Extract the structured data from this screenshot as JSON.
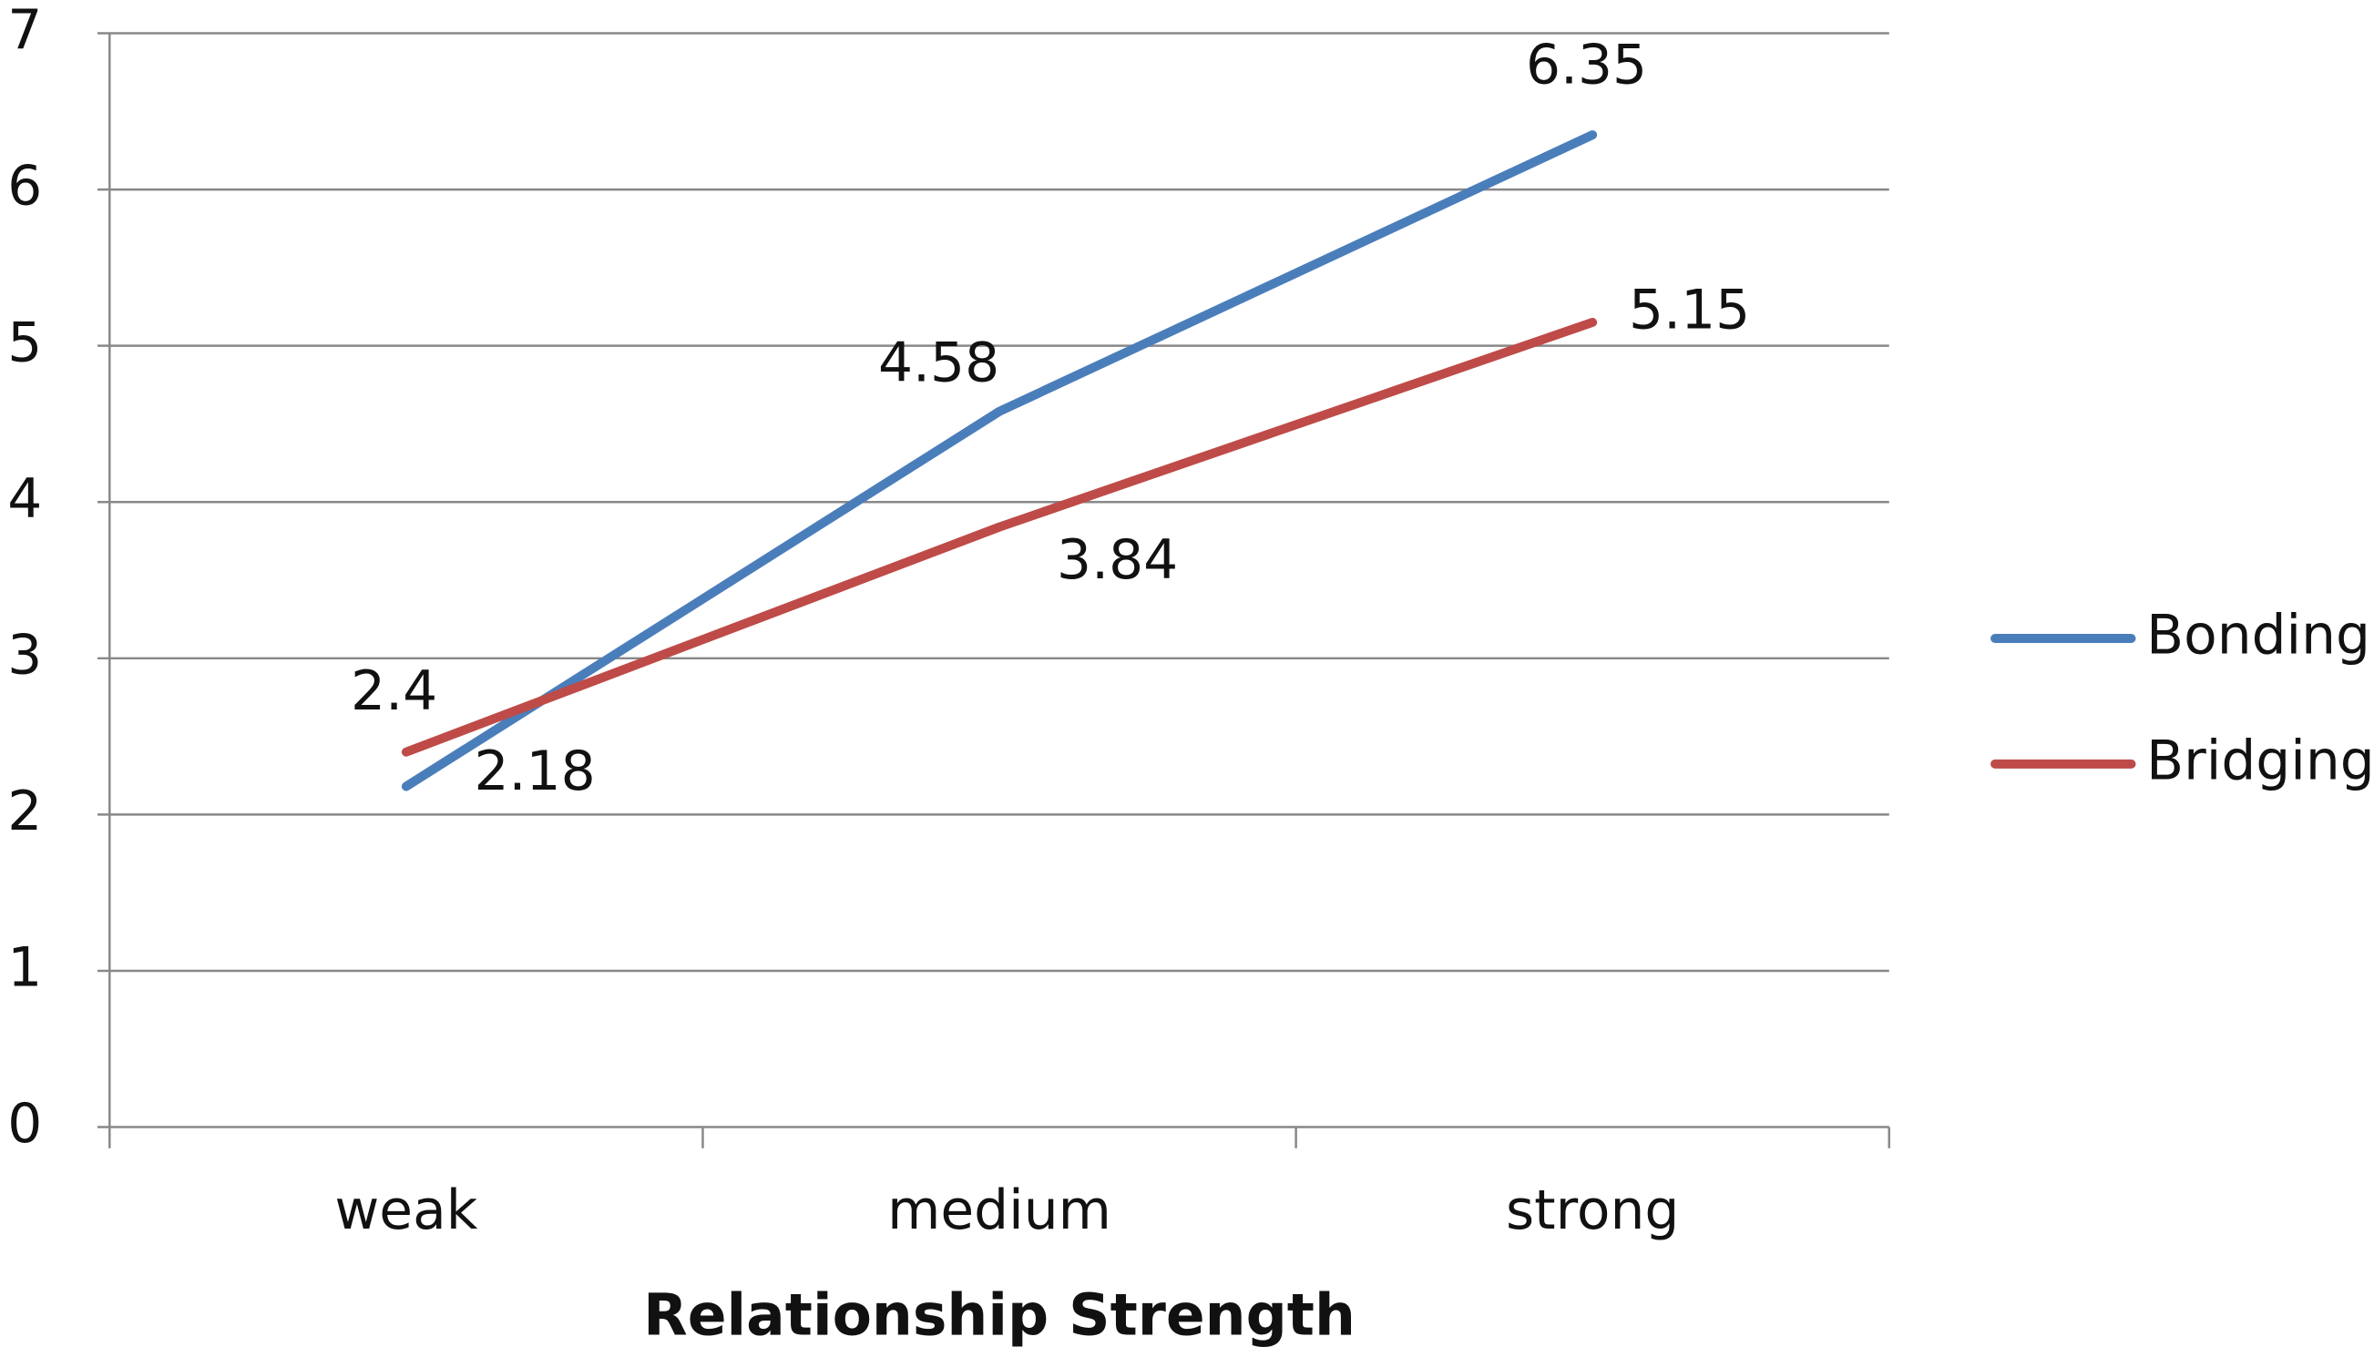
{
  "chart_data": {
    "type": "line",
    "x_label": "Relationship Strength",
    "categories": [
      "weak",
      "medium",
      "strong"
    ],
    "series": [
      {
        "name": "Bonding",
        "color": "#4a7ebb",
        "values": [
          2.18,
          4.58,
          6.35
        ]
      },
      {
        "name": "Bridging",
        "color": "#be4b48",
        "values": [
          2.4,
          3.84,
          5.15
        ]
      }
    ],
    "ylim": [
      0,
      7
    ],
    "yticks": [
      0,
      1,
      2,
      3,
      4,
      5,
      6,
      7
    ],
    "grid": true,
    "legend": "right"
  }
}
